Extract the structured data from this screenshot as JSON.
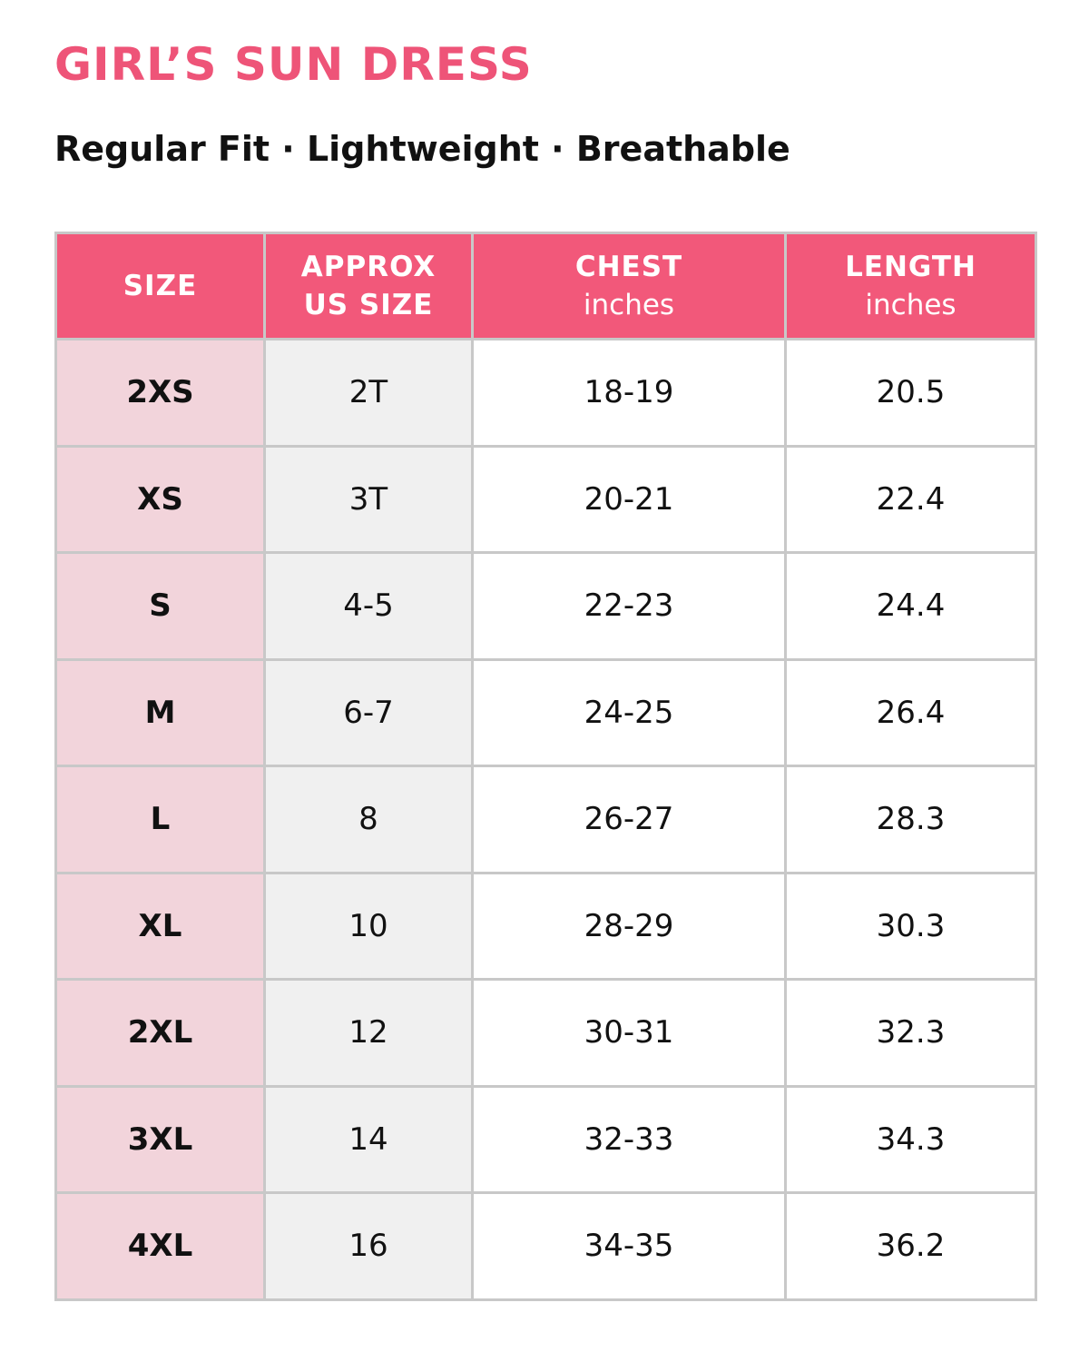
{
  "title": "GIRL’S SUN DRESS",
  "subtitle": "Regular Fit · Lightweight · Breathable",
  "table": {
    "headers": [
      {
        "lines": [
          "SIZE"
        ]
      },
      {
        "lines": [
          "APPROX",
          "US SIZE"
        ]
      },
      {
        "lines": [
          "CHEST"
        ],
        "unit": "inches"
      },
      {
        "lines": [
          "LENGTH"
        ],
        "unit": "inches"
      }
    ],
    "rows": [
      [
        "2XS",
        "2T",
        "18-19",
        "20.5"
      ],
      [
        "XS",
        "3T",
        "20-21",
        "22.4"
      ],
      [
        "S",
        "4-5",
        "22-23",
        "24.4"
      ],
      [
        "M",
        "6-7",
        "24-25",
        "26.4"
      ],
      [
        "L",
        "8",
        "26-27",
        "28.3"
      ],
      [
        "XL",
        "10",
        "28-29",
        "30.3"
      ],
      [
        "2XL",
        "12",
        "30-31",
        "32.3"
      ],
      [
        "3XL",
        "14",
        "32-33",
        "34.3"
      ],
      [
        "4XL",
        "16",
        "34-35",
        "36.2"
      ]
    ]
  }
}
